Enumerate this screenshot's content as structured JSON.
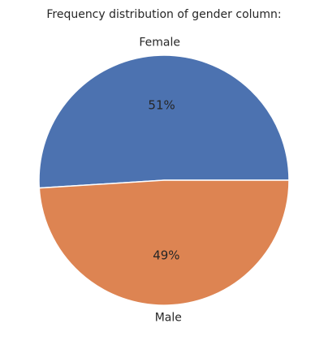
{
  "chart_data": {
    "type": "pie",
    "title": "Frequency distribution of gender column:",
    "categories": [
      "Female",
      "Male"
    ],
    "values": [
      51,
      49
    ],
    "value_labels": [
      "51%",
      "49%"
    ],
    "colors": [
      "#4c72b0",
      "#dd8452"
    ],
    "start_angle_deg": 0,
    "direction": "counterclockwise",
    "legend": "none",
    "grid": false
  }
}
